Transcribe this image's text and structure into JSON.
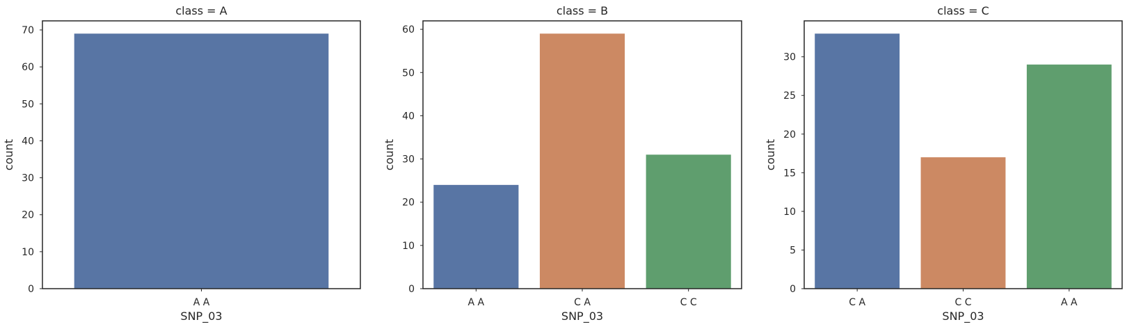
{
  "chart_data": [
    {
      "type": "bar",
      "title": "class = A",
      "xlabel": "SNP_03",
      "ylabel": "count",
      "categories": [
        "A A"
      ],
      "values": [
        69
      ],
      "colors": [
        "#5875a4"
      ],
      "ylim": [
        0,
        72.45
      ],
      "yticks": [
        0,
        10,
        20,
        30,
        40,
        50,
        60,
        70
      ],
      "grid": false
    },
    {
      "type": "bar",
      "title": "class = B",
      "xlabel": "SNP_03",
      "ylabel": "count",
      "categories": [
        "A A",
        "C A",
        "C C"
      ],
      "values": [
        24,
        59,
        31
      ],
      "colors": [
        "#5875a4",
        "#cc8963",
        "#5f9e6e"
      ],
      "ylim": [
        0,
        61.95
      ],
      "yticks": [
        0,
        10,
        20,
        30,
        40,
        50,
        60
      ],
      "grid": false
    },
    {
      "type": "bar",
      "title": "class = C",
      "xlabel": "SNP_03",
      "ylabel": "count",
      "categories": [
        "C A",
        "C C",
        "A A"
      ],
      "values": [
        33,
        17,
        29
      ],
      "colors": [
        "#5875a4",
        "#cc8963",
        "#5f9e6e"
      ],
      "ylim": [
        0,
        34.65
      ],
      "yticks": [
        0,
        5,
        10,
        15,
        20,
        25,
        30
      ],
      "grid": false
    }
  ]
}
